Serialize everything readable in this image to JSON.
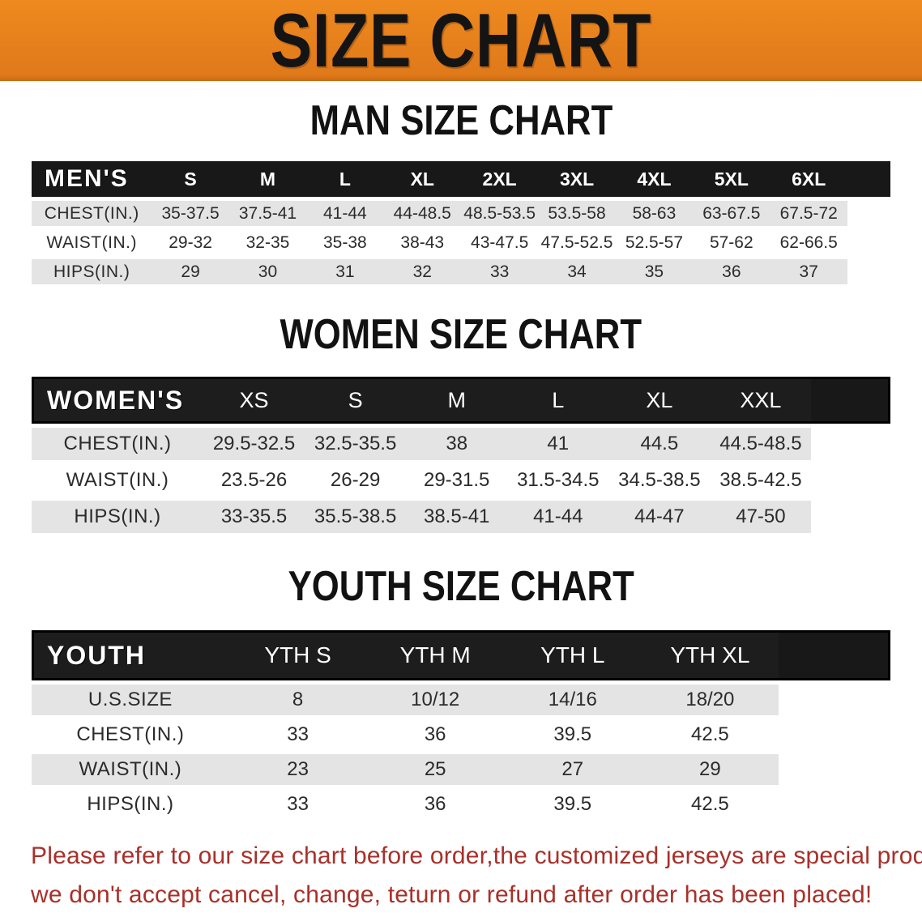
{
  "banner": {
    "title": "SIZE CHART"
  },
  "theme": {
    "banner_bg": "#EE8A1F",
    "header_bg": "#181818",
    "row_alt_bg": "#E4E4E4",
    "disclaimer_red": "#A8302A"
  },
  "sections": [
    {
      "heading": "MAN SIZE CHART",
      "table": {
        "label": "MEN'S",
        "columns": [
          "S",
          "M",
          "L",
          "XL",
          "2XL",
          "3XL",
          "4XL",
          "5XL",
          "6XL"
        ],
        "rows": [
          {
            "label": "CHEST(IN.)",
            "values": [
              "35-37.5",
              "37.5-41",
              "41-44",
              "44-48.5",
              "48.5-53.5",
              "53.5-58",
              "58-63",
              "63-67.5",
              "67.5-72"
            ]
          },
          {
            "label": "WAIST(IN.)",
            "values": [
              "29-32",
              "32-35",
              "35-38",
              "38-43",
              "43-47.5",
              "47.5-52.5",
              "52.5-57",
              "57-62",
              "62-66.5"
            ]
          },
          {
            "label": "HIPS(IN.)",
            "values": [
              "29",
              "30",
              "31",
              "32",
              "33",
              "34",
              "35",
              "36",
              "37"
            ]
          }
        ]
      }
    },
    {
      "heading": "WOMEN SIZE CHART",
      "table": {
        "label": "WOMEN'S",
        "columns": [
          "XS",
          "S",
          "M",
          "L",
          "XL",
          "XXL"
        ],
        "rows": [
          {
            "label": "CHEST(IN.)",
            "values": [
              "29.5-32.5",
              "32.5-35.5",
              "38",
              "41",
              "44.5",
              "44.5-48.5"
            ]
          },
          {
            "label": "WAIST(IN.)",
            "values": [
              "23.5-26",
              "26-29",
              "29-31.5",
              "31.5-34.5",
              "34.5-38.5",
              "38.5-42.5"
            ]
          },
          {
            "label": "HIPS(IN.)",
            "values": [
              "33-35.5",
              "35.5-38.5",
              "38.5-41",
              "41-44",
              "44-47",
              "47-50"
            ]
          }
        ]
      }
    },
    {
      "heading": "YOUTH SIZE CHART",
      "table": {
        "label": "YOUTH",
        "columns": [
          "YTH S",
          "YTH M",
          "YTH L",
          "YTH XL"
        ],
        "rows": [
          {
            "label": "U.S.SIZE",
            "values": [
              "8",
              "10/12",
              "14/16",
              "18/20"
            ]
          },
          {
            "label": "CHEST(IN.)",
            "values": [
              "33",
              "36",
              "39.5",
              "42.5"
            ]
          },
          {
            "label": "WAIST(IN.)",
            "values": [
              "23",
              "25",
              "27",
              "29"
            ]
          },
          {
            "label": "HIPS(IN.)",
            "values": [
              "33",
              "36",
              "39.5",
              "42.5"
            ]
          }
        ]
      }
    }
  ],
  "disclaimer": {
    "line1": "Please refer to our size chart before order,the customized jerseys are special products,",
    "line2": "we don't accept cancel, change, teturn or refund after order has been placed!"
  }
}
